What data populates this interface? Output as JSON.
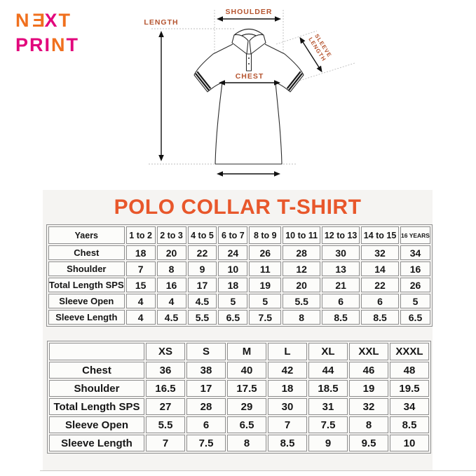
{
  "logo": {
    "lines": [
      {
        "letters": [
          {
            "ch": "N",
            "color": "orange"
          },
          {
            "ch": "E",
            "color": "orange",
            "flip": true
          },
          {
            "ch": "X",
            "color": "magenta"
          },
          {
            "ch": "T",
            "color": "orange"
          }
        ]
      },
      {
        "letters": [
          {
            "ch": "P",
            "color": "magenta"
          },
          {
            "ch": "R",
            "color": "magenta"
          },
          {
            "ch": "I",
            "color": "magenta"
          },
          {
            "ch": "N",
            "color": "orange"
          },
          {
            "ch": "T",
            "color": "magenta"
          }
        ]
      }
    ]
  },
  "colors": {
    "logo_orange": "#F0701E",
    "logo_magenta": "#E2077C",
    "title_orange": "#E8572B",
    "diagram_label": "#B5542F",
    "panel_gray": "#f5f4f2",
    "table_border": "#8f8f8f"
  },
  "diagram": {
    "labels": {
      "shoulder": "SHOULDER",
      "length": "LENGTH",
      "chest": "CHEST",
      "sleeve_line1": "SLEEVE",
      "sleeve_line2": "LENGTH"
    }
  },
  "title": "POLO COLLAR T-SHIRT",
  "kids_table": {
    "header": [
      "Yaers",
      "1 to 2",
      "2 to 3",
      "4 to 5",
      "6 to 7",
      "8 to 9",
      "10 to 11",
      "12 to 13",
      "14 to 15",
      "16 YEARS"
    ],
    "rows": [
      [
        "Chest",
        "18",
        "20",
        "22",
        "24",
        "26",
        "28",
        "30",
        "32",
        "34"
      ],
      [
        "Shoulder",
        "7",
        "8",
        "9",
        "10",
        "11",
        "12",
        "13",
        "14",
        "16"
      ],
      [
        "Total Length SPS",
        "15",
        "16",
        "17",
        "18",
        "19",
        "20",
        "21",
        "22",
        "26"
      ],
      [
        "Sleeve Open",
        "4",
        "4",
        "4.5",
        "5",
        "5",
        "5.5",
        "6",
        "6",
        "5"
      ],
      [
        "Sleeve Length",
        "4",
        "4.5",
        "5.5",
        "6.5",
        "7.5",
        "8",
        "8.5",
        "8.5",
        "6.5"
      ]
    ]
  },
  "adult_table": {
    "header": [
      "",
      "XS",
      "S",
      "M",
      "L",
      "XL",
      "XXL",
      "XXXL"
    ],
    "rows": [
      [
        "Chest",
        "36",
        "38",
        "40",
        "42",
        "44",
        "46",
        "48"
      ],
      [
        "Shoulder",
        "16.5",
        "17",
        "17.5",
        "18",
        "18.5",
        "19",
        "19.5"
      ],
      [
        "Total Length SPS",
        "27",
        "28",
        "29",
        "30",
        "31",
        "32",
        "34"
      ],
      [
        "Sleeve Open",
        "5.5",
        "6",
        "6.5",
        "7",
        "7.5",
        "8",
        "8.5"
      ],
      [
        "Sleeve Length",
        "7",
        "7.5",
        "8",
        "8.5",
        "9",
        "9.5",
        "10"
      ]
    ]
  }
}
